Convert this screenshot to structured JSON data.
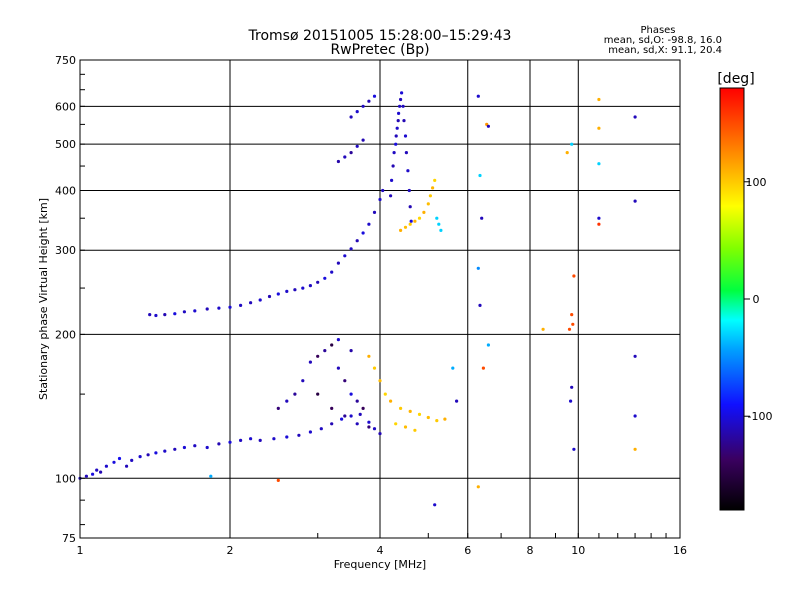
{
  "chart_data": {
    "type": "scatter",
    "title": "Tromsø 20151005 15:28:00–15:29:43",
    "subtitle": "RwPretec (Bp)",
    "xlabel": "Frequency [MHz]",
    "ylabel": "Stationary phase Virtual Height [km]",
    "x_scale": "log",
    "y_scale": "log",
    "xlim": [
      1,
      16
    ],
    "ylim": [
      75,
      750
    ],
    "x_ticks": [
      1,
      2,
      4,
      6,
      8,
      10,
      16
    ],
    "y_ticks": [
      75,
      100,
      200,
      300,
      400,
      500,
      600,
      750
    ],
    "grid": true,
    "stats": {
      "heading": "Phases",
      "line_o": "mean, sd,O: -98.8, 16.0",
      "line_x": "mean, sd,X:  91.1, 20.4"
    },
    "colorbar": {
      "label": "[deg]",
      "range": [
        -180,
        180
      ],
      "ticks": [
        100,
        0,
        -100
      ]
    },
    "series": [
      {
        "points": [
          [
            1.0,
            100,
            -105
          ],
          [
            1.03,
            101,
            -110
          ],
          [
            1.06,
            102,
            -100
          ],
          [
            1.08,
            104,
            -108
          ],
          [
            1.1,
            103,
            -112
          ],
          [
            1.13,
            106,
            -105
          ],
          [
            1.17,
            108,
            -100
          ],
          [
            1.2,
            110,
            -95
          ],
          [
            1.24,
            106,
            -110
          ],
          [
            1.27,
            109,
            -108
          ],
          [
            1.32,
            111,
            -104
          ],
          [
            1.37,
            112,
            -112
          ],
          [
            1.42,
            113,
            -100
          ],
          [
            1.48,
            114,
            -106
          ],
          [
            1.55,
            115,
            -110
          ],
          [
            1.62,
            116,
            -102
          ],
          [
            1.7,
            117,
            -108
          ],
          [
            1.8,
            116,
            -105
          ],
          [
            1.9,
            118,
            -112
          ],
          [
            2.0,
            119,
            -100
          ],
          [
            2.1,
            120,
            -108
          ],
          [
            2.2,
            121,
            -104
          ],
          [
            2.3,
            120,
            -110
          ],
          [
            2.45,
            121,
            -106
          ],
          [
            2.6,
            122,
            -102
          ],
          [
            2.75,
            123,
            -110
          ],
          [
            2.9,
            125,
            -105
          ],
          [
            3.05,
            127,
            -108
          ],
          [
            3.2,
            130,
            -112
          ],
          [
            3.35,
            133,
            -100
          ],
          [
            3.5,
            135,
            -106
          ],
          [
            3.65,
            136,
            -110
          ],
          [
            3.8,
            131,
            -104
          ],
          [
            3.9,
            127,
            -108
          ],
          [
            4.0,
            124,
            -112
          ]
        ]
      },
      {
        "points": [
          [
            1.38,
            220,
            -110
          ],
          [
            1.42,
            219,
            -105
          ],
          [
            1.48,
            220,
            -112
          ],
          [
            1.55,
            221,
            -100
          ],
          [
            1.62,
            223,
            -108
          ],
          [
            1.7,
            224,
            -104
          ],
          [
            1.8,
            226,
            -110
          ],
          [
            1.9,
            227,
            -106
          ],
          [
            2.0,
            228,
            -102
          ],
          [
            2.1,
            230,
            -108
          ],
          [
            2.2,
            233,
            -110
          ],
          [
            2.3,
            236,
            -104
          ],
          [
            2.4,
            240,
            -112
          ],
          [
            2.5,
            243,
            -100
          ],
          [
            2.6,
            246,
            -106
          ],
          [
            2.7,
            248,
            -110
          ],
          [
            2.8,
            250,
            -104
          ],
          [
            2.9,
            253,
            -108
          ],
          [
            3.0,
            257,
            -112
          ],
          [
            3.1,
            262,
            -100
          ],
          [
            3.2,
            270,
            -106
          ],
          [
            3.3,
            282,
            -110
          ],
          [
            3.4,
            292,
            -104
          ],
          [
            3.5,
            302,
            -108
          ],
          [
            3.6,
            314,
            -112
          ],
          [
            3.7,
            326,
            -100
          ],
          [
            3.8,
            340,
            -106
          ],
          [
            3.9,
            360,
            -110
          ],
          [
            4.0,
            383,
            -104
          ],
          [
            4.05,
            400,
            -108
          ]
        ]
      },
      {
        "points": [
          [
            4.2,
            390,
            -110
          ],
          [
            4.22,
            420,
            -105
          ],
          [
            4.25,
            450,
            -112
          ],
          [
            4.27,
            480,
            -108
          ],
          [
            4.3,
            500,
            -100
          ],
          [
            4.31,
            520,
            -110
          ],
          [
            4.33,
            540,
            -106
          ],
          [
            4.35,
            560,
            -112
          ],
          [
            4.36,
            580,
            -104
          ],
          [
            4.38,
            600,
            -108
          ],
          [
            4.4,
            620,
            -110
          ],
          [
            4.42,
            640,
            -102
          ],
          [
            4.45,
            600,
            -108
          ],
          [
            4.47,
            560,
            -112
          ],
          [
            4.5,
            520,
            -104
          ],
          [
            4.52,
            480,
            -110
          ],
          [
            4.55,
            440,
            -106
          ],
          [
            4.58,
            400,
            -108
          ],
          [
            4.6,
            370,
            -112
          ],
          [
            4.62,
            345,
            -100
          ]
        ]
      },
      {
        "points": [
          [
            3.5,
            570,
            -110
          ],
          [
            3.6,
            585,
            -105
          ],
          [
            3.7,
            600,
            -108
          ],
          [
            3.8,
            615,
            -112
          ],
          [
            3.9,
            630,
            -100
          ],
          [
            3.3,
            460,
            -115
          ],
          [
            3.4,
            470,
            -110
          ],
          [
            3.5,
            480,
            -120
          ],
          [
            3.6,
            495,
            -108
          ],
          [
            3.7,
            510,
            -112
          ]
        ]
      },
      {
        "points": [
          [
            4.4,
            330,
            110
          ],
          [
            4.5,
            335,
            105
          ],
          [
            4.6,
            340,
            100
          ],
          [
            4.7,
            345,
            108
          ],
          [
            4.8,
            350,
            95
          ],
          [
            4.9,
            360,
            110
          ],
          [
            5.0,
            375,
            105
          ],
          [
            5.05,
            390,
            100
          ],
          [
            5.1,
            405,
            108
          ],
          [
            5.15,
            420,
            95
          ]
        ]
      },
      {
        "points": [
          [
            2.9,
            175,
            -110
          ],
          [
            3.0,
            180,
            -140
          ],
          [
            3.1,
            185,
            -120
          ],
          [
            3.2,
            190,
            -150
          ],
          [
            3.3,
            170,
            -110
          ],
          [
            3.4,
            160,
            -130
          ],
          [
            3.5,
            150,
            -100
          ],
          [
            3.6,
            145,
            -120
          ],
          [
            3.7,
            140,
            -140
          ],
          [
            2.8,
            160,
            -110
          ],
          [
            2.7,
            150,
            -120
          ],
          [
            2.6,
            145,
            -110
          ],
          [
            2.5,
            140,
            -130
          ],
          [
            3.0,
            150,
            -150
          ],
          [
            3.2,
            140,
            -140
          ],
          [
            3.4,
            135,
            -120
          ],
          [
            3.6,
            130,
            -110
          ],
          [
            3.8,
            128,
            -130
          ],
          [
            3.3,
            195,
            -105
          ],
          [
            3.5,
            185,
            -115
          ]
        ]
      },
      {
        "points": [
          [
            3.8,
            180,
            110
          ],
          [
            3.9,
            170,
            100
          ],
          [
            4.0,
            160,
            105
          ],
          [
            4.1,
            150,
            95
          ],
          [
            4.2,
            145,
            110
          ],
          [
            4.4,
            140,
            100
          ],
          [
            4.6,
            138,
            108
          ],
          [
            4.8,
            136,
            95
          ],
          [
            5.0,
            134,
            105
          ],
          [
            5.2,
            132,
            100
          ],
          [
            5.4,
            133,
            110
          ],
          [
            4.3,
            130,
            95
          ],
          [
            4.5,
            128,
            105
          ],
          [
            4.7,
            126,
            100
          ]
        ]
      },
      {
        "points": [
          [
            6.3,
            630,
            -105
          ],
          [
            6.35,
            430,
            -30
          ],
          [
            6.4,
            350,
            -110
          ],
          [
            6.3,
            275,
            -50
          ],
          [
            6.35,
            230,
            -110
          ],
          [
            6.45,
            170,
            150
          ],
          [
            6.3,
            96,
            110
          ],
          [
            6.6,
            190,
            -40
          ],
          [
            6.55,
            550,
            120
          ],
          [
            6.6,
            545,
            -110
          ],
          [
            9.7,
            500,
            -30
          ],
          [
            9.5,
            480,
            110
          ],
          [
            9.8,
            265,
            150
          ],
          [
            9.7,
            220,
            150
          ],
          [
            9.75,
            210,
            150
          ],
          [
            9.6,
            205,
            150
          ],
          [
            9.7,
            155,
            -110
          ],
          [
            9.65,
            145,
            -105
          ],
          [
            9.8,
            115,
            -105
          ],
          [
            11.0,
            620,
            110
          ],
          [
            11.0,
            540,
            110
          ],
          [
            11.0,
            455,
            -30
          ],
          [
            11.0,
            350,
            -105
          ],
          [
            11.0,
            340,
            160
          ],
          [
            13.0,
            570,
            -110
          ],
          [
            13.0,
            380,
            -110
          ],
          [
            13.0,
            180,
            -110
          ],
          [
            13.0,
            135,
            -105
          ],
          [
            13.0,
            115,
            110
          ],
          [
            5.2,
            350,
            -30
          ],
          [
            5.25,
            340,
            -30
          ],
          [
            5.3,
            330,
            -30
          ],
          [
            5.6,
            170,
            -40
          ],
          [
            5.7,
            145,
            -110
          ],
          [
            5.15,
            88,
            -105
          ],
          [
            8.5,
            205,
            110
          ],
          [
            2.5,
            99,
            150
          ],
          [
            1.83,
            101,
            -40
          ]
        ]
      }
    ]
  }
}
